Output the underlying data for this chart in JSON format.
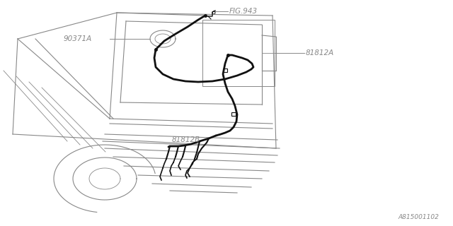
{
  "bg_color": "#ffffff",
  "car_color": "#888888",
  "wire_color": "#111111",
  "label_color": "#888888",
  "labels": {
    "fig943": "FIG.943",
    "part_a": "81812A",
    "part_b": "81812B",
    "gasket": "90371A",
    "diagram_id": "A815001102"
  },
  "figsize": [
    6.4,
    3.2
  ],
  "dpi": 100
}
